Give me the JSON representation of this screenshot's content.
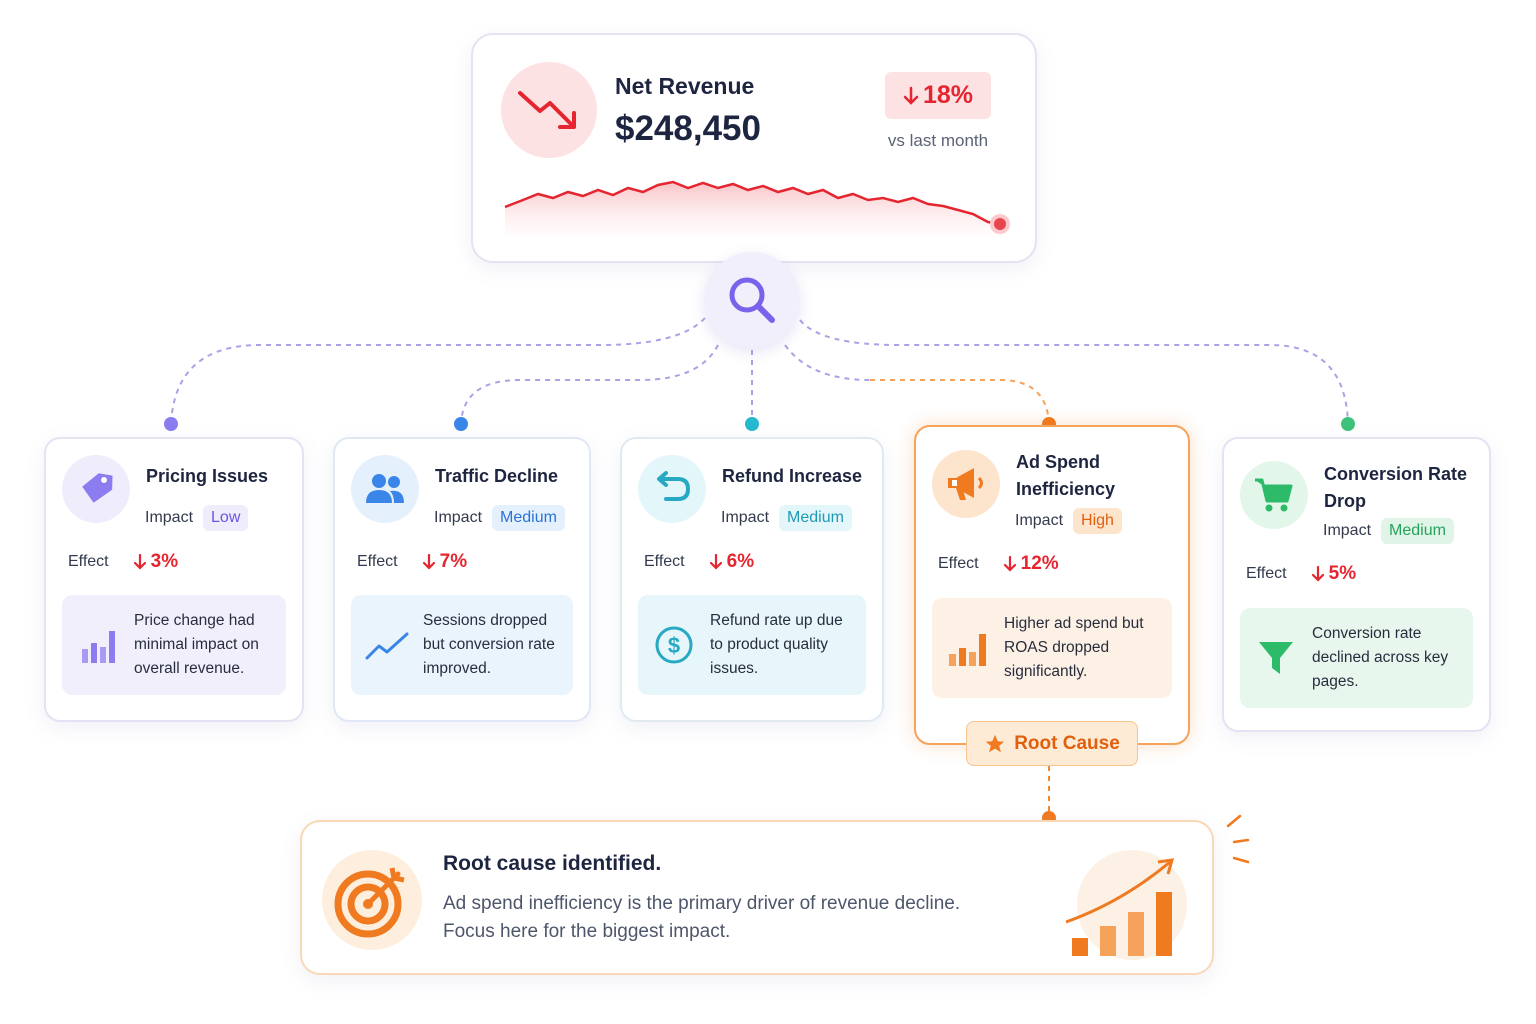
{
  "revenue": {
    "title": "Net Revenue",
    "value": "$248,450",
    "change": "18%",
    "comparison": "vs last month"
  },
  "causes": [
    {
      "title": "Pricing Issues",
      "impact_label": "Impact",
      "impact": "Low",
      "effect_label": "Effect",
      "effect": "3%",
      "note": "Price change had minimal impact on overall revenue."
    },
    {
      "title": "Traffic Decline",
      "impact_label": "Impact",
      "impact": "Medium",
      "effect_label": "Effect",
      "effect": "7%",
      "note": "Sessions dropped but conversion rate improved."
    },
    {
      "title": "Refund Increase",
      "impact_label": "Impact",
      "impact": "Medium",
      "effect_label": "Effect",
      "effect": "6%",
      "note": "Refund rate up due to product quality issues."
    },
    {
      "title": "Ad Spend Inefficiency",
      "impact_label": "Impact",
      "impact": "High",
      "effect_label": "Effect",
      "effect": "12%",
      "note": "Higher ad spend but ROAS dropped significantly."
    },
    {
      "title": "Conversion Rate Drop",
      "impact_label": "Impact",
      "impact": "Medium",
      "effect_label": "Effect",
      "effect": "5%",
      "note": "Conversion rate declined across key pages."
    }
  ],
  "root_badge": "Root Cause",
  "summary": {
    "title": "Root cause identified.",
    "text": "Ad spend inefficiency is the primary driver of revenue decline. Focus here for the biggest impact."
  }
}
